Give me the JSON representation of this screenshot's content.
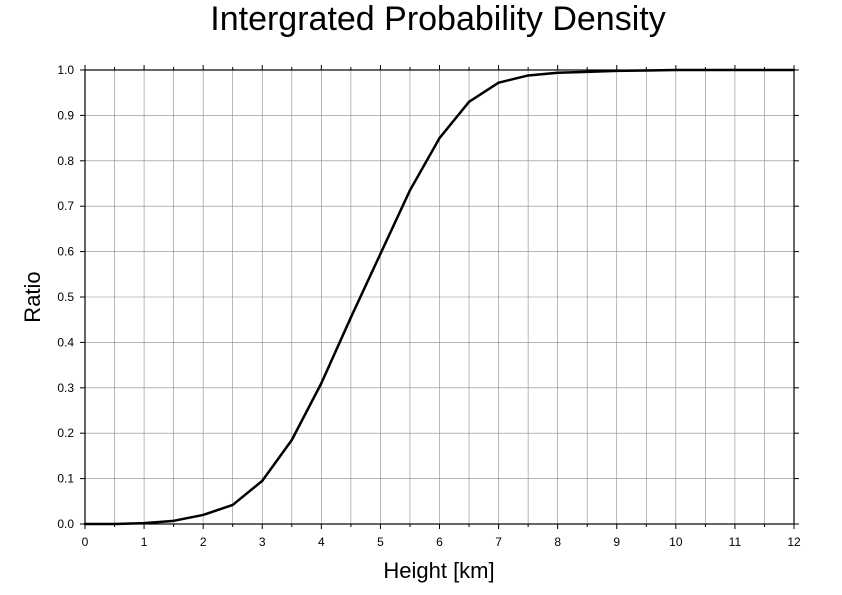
{
  "chart_data": {
    "type": "line",
    "title": "Intergrated Probability Density",
    "xlabel": "Height [km]",
    "ylabel": "Ratio",
    "xlim": [
      0,
      12
    ],
    "ylim": [
      0,
      1
    ],
    "x_ticks": [
      "0",
      "1",
      "2",
      "3",
      "4",
      "5",
      "6",
      "7",
      "8",
      "9",
      "10",
      "11",
      "12"
    ],
    "y_ticks": [
      "0.0",
      "0.1",
      "0.2",
      "0.3",
      "0.4",
      "0.5",
      "0.6",
      "0.7",
      "0.8",
      "0.9",
      "1.0"
    ],
    "x_minor_step": 0.5,
    "y_minor_step": 0.1,
    "grid": true,
    "legend": "none",
    "series": [
      {
        "color": "#000000",
        "x": [
          0,
          0.5,
          1,
          1.5,
          2,
          2.5,
          3,
          3.5,
          4,
          4.5,
          5,
          5.5,
          6,
          6.5,
          7,
          7.5,
          8,
          8.5,
          9,
          9.5,
          10,
          10.5,
          11,
          11.5,
          12
        ],
        "y": [
          0.0,
          0.0,
          0.002,
          0.007,
          0.02,
          0.042,
          0.095,
          0.185,
          0.31,
          0.455,
          0.595,
          0.735,
          0.85,
          0.93,
          0.972,
          0.988,
          0.994,
          0.996,
          0.998,
          0.999,
          1.0,
          1.0,
          1.0,
          1.0,
          1.0
        ]
      }
    ]
  }
}
